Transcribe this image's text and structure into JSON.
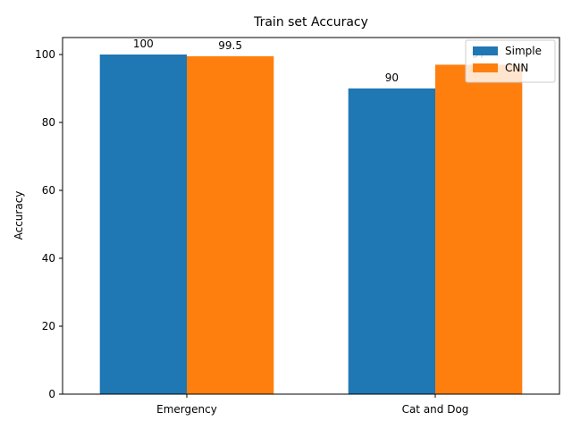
{
  "chart_data": {
    "type": "bar",
    "title": "Train set Accuracy",
    "xlabel": "",
    "ylabel": "Accuracy",
    "categories": [
      "Emergency",
      "Cat and Dog"
    ],
    "series": [
      {
        "name": "Simple",
        "values": [
          100,
          90
        ],
        "color": "#1f77b4",
        "labels": [
          "100",
          "90"
        ]
      },
      {
        "name": "CNN",
        "values": [
          99.5,
          97
        ],
        "color": "#ff7f0e",
        "labels": [
          "99.5",
          "97"
        ]
      }
    ],
    "ylim": [
      0,
      105
    ],
    "yticks": [
      0,
      20,
      40,
      60,
      80,
      100
    ],
    "yticklabels": [
      "0",
      "20",
      "40",
      "60",
      "80",
      "100"
    ],
    "grid": false,
    "legend_position": "top-right"
  }
}
